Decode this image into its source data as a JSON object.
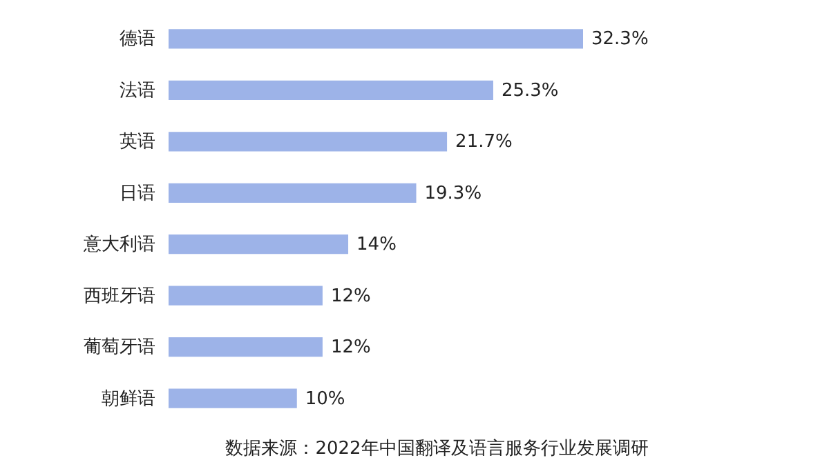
{
  "chart_data": {
    "type": "bar",
    "orientation": "horizontal",
    "categories": [
      "德语",
      "法语",
      "英语",
      "日语",
      "意大利语",
      "西班牙语",
      "葡萄牙语",
      "朝鲜语"
    ],
    "values": [
      32.3,
      25.3,
      21.7,
      19.3,
      14,
      12,
      12,
      10
    ],
    "value_labels": [
      "32.3%",
      "25.3%",
      "21.7%",
      "19.3%",
      "14%",
      "12%",
      "12%",
      "10%"
    ],
    "color": "#9db3e8",
    "annotations": [
      "数据来源：2022年中国翻译及语言服务行业发展调研"
    ]
  }
}
